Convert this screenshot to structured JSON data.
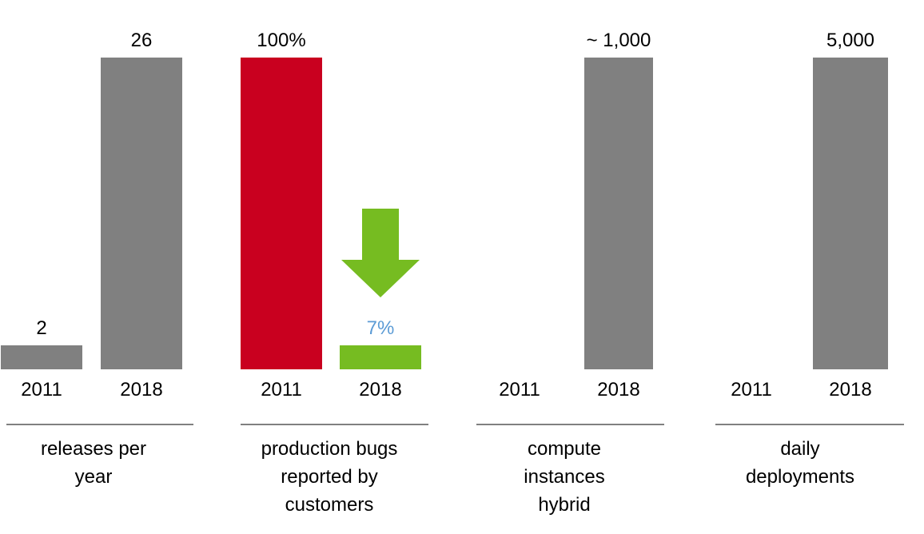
{
  "chart_data": [
    {
      "type": "bar",
      "categories": [
        "2011",
        "2018"
      ],
      "values": [
        2,
        26
      ],
      "value_labels": [
        "2",
        "26"
      ],
      "xlabel": "releases per\nyear",
      "colors": [
        "#808080",
        "#808080"
      ],
      "label_colors": [
        "#000000",
        "#000000"
      ]
    },
    {
      "type": "bar",
      "categories": [
        "2011",
        "2018"
      ],
      "values": [
        100,
        7
      ],
      "value_labels": [
        "100%",
        "7%"
      ],
      "xlabel": "production bugs\nreported by\ncustomers",
      "colors": [
        "#c9001f",
        "#76bc21"
      ],
      "label_colors": [
        "#000000",
        "#5b9bd5"
      ],
      "annotation": {
        "type": "down-arrow-icon",
        "color": "#76bc21"
      }
    },
    {
      "type": "bar",
      "categories": [
        "2011",
        "2018"
      ],
      "values": [
        null,
        1000
      ],
      "value_labels": [
        "",
        "~ 1,000"
      ],
      "xlabel": "compute\ninstances\nhybrid",
      "colors": [
        "#808080",
        "#808080"
      ],
      "label_colors": [
        "#000000",
        "#000000"
      ]
    },
    {
      "type": "bar",
      "categories": [
        "2011",
        "2018"
      ],
      "values": [
        null,
        5000
      ],
      "value_labels": [
        "",
        "5,000"
      ],
      "xlabel": "daily\ndeployments",
      "colors": [
        "#808080",
        "#808080"
      ],
      "label_colors": [
        "#000000",
        "#000000"
      ]
    }
  ]
}
